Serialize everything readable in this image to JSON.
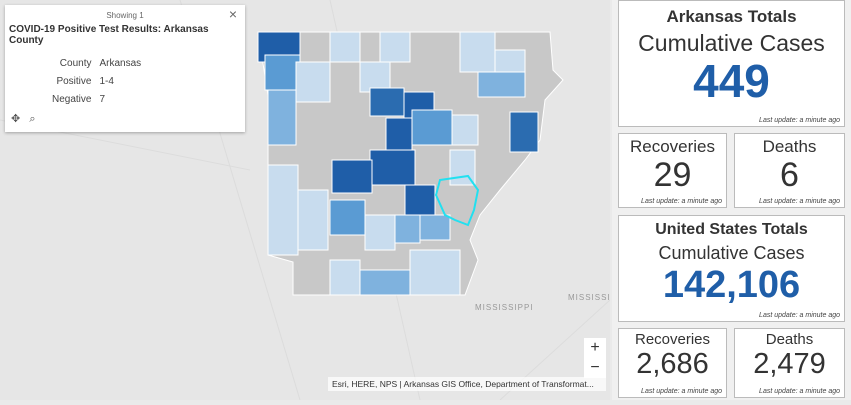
{
  "popup": {
    "header": "Showing 1",
    "title": "COVID-19 Positive Test Results: Arkansas County",
    "fields": [
      [
        "County",
        "Arkansas"
      ],
      [
        "Positive",
        "1-4"
      ],
      [
        "Negative",
        "7"
      ]
    ]
  },
  "map": {
    "labels": [
      "MISSISSIPPI",
      "MISSISSIPPI"
    ],
    "attribution": "Esri, HERE, NPS | Arkansas GIS Office, Department of Transformat..."
  },
  "arkansas": {
    "title": "Arkansas Totals",
    "subtitle": "Cumulative Cases",
    "value": "449",
    "update": "Last update: a minute ago",
    "recoveries": {
      "label": "Recoveries",
      "value": "29",
      "update": "Last update: a minute ago"
    },
    "deaths": {
      "label": "Deaths",
      "value": "6",
      "update": "Last update: a minute ago"
    }
  },
  "us": {
    "title": "United States Totals",
    "subtitle": "Cumulative Cases",
    "value": "142,106",
    "update": "Last update: a minute ago",
    "recoveries": {
      "label": "Recoveries",
      "value": "2,686",
      "update": "Last update: a minute ago"
    },
    "deaths": {
      "label": "Deaths",
      "value": "2,479",
      "update": "Last update: a minute ago"
    }
  }
}
